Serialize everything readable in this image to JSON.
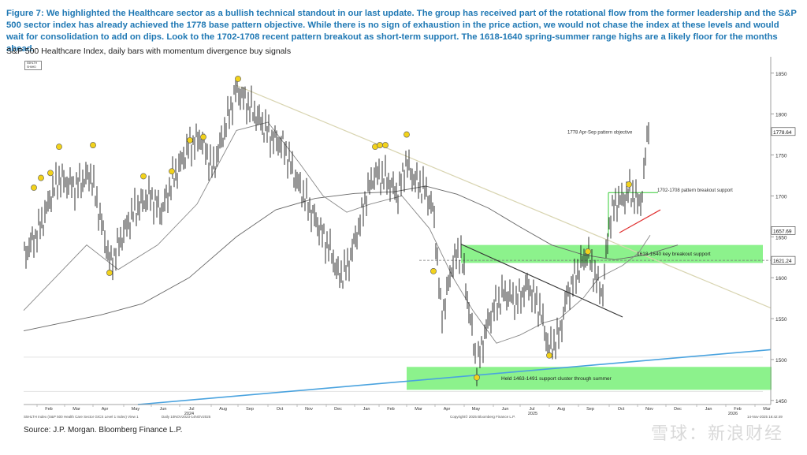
{
  "caption": "Figure 7: We highlighted the Healthcare sector as a bullish technical standout in our last update. The group has received part of the rotational flow from the former leadership and the S&P 500 sector index has already achieved the 1778 base pattern objective. While there is no sign of exhaustion in the price action, we would not chase the index at these levels and would wait for consolidation to add on dips. Look to the 1702-1708 recent pattern breakout as short-term support. The 1618-1640 spring-summer range highs are a likely floor for the months ahead.",
  "subtitle": "S&P 500 Healthcare Index, daily bars with momentum divergence buy signals",
  "source": "Source: J.P. Morgan. Bloomberg Finance L.P.",
  "watermark": "雪球：新浪财经",
  "legend_box": "S5HLTH SH6HD",
  "footer": {
    "left_small": "S5HLTH Index (S&P 500 Health Care Sector GICS Level 1 Index) View 1",
    "date_small": "Daily 10NOV2023-14NOV2025",
    "copyright": "Copyright© 2025 Bloomberg Finance L.P.",
    "timestamp": "14-Nov-2025 16:42:49"
  },
  "colors": {
    "caption": "#1f78b4",
    "green_zone": "#66ee66",
    "trend_blue": "#4aa3df",
    "trend_tan": "#d8d4b0",
    "signal_yellow": "#f2d21b",
    "red_line": "#e03030"
  },
  "chart_data": {
    "type": "bar",
    "title": "S&P 500 Healthcare Index, daily bars with momentum divergence buy signals",
    "ylim": [
      1445,
      1870
    ],
    "y_ticks": [
      1450,
      1500,
      1550,
      1600,
      1650,
      1700,
      1750,
      1800,
      1850
    ],
    "y_tick_labels": [
      "1450",
      "1500",
      "1550",
      "1600",
      "1650",
      "1700",
      "1750",
      "1800",
      "1850"
    ],
    "x_tick_labels": [
      "Feb",
      "Mar",
      "Apr",
      "May",
      "Jun",
      "Jul",
      "Aug",
      "Sep",
      "Oct",
      "Nov",
      "Dec",
      "Jan",
      "Feb",
      "Mar",
      "Apr",
      "May",
      "Jun",
      "Jul",
      "Aug",
      "Sep",
      "Oct",
      "Nov",
      "Dec",
      "Jan",
      "Feb",
      "Mar"
    ],
    "x_year_labels": [
      "2024",
      "2025",
      "2026"
    ],
    "price_labels": [
      "1778.64",
      "1657.69",
      "1621.24"
    ],
    "price_label_values": [
      1778.64,
      1657.69,
      1621.24
    ],
    "zones": [
      {
        "label": "1618-1640 key breakout support",
        "low": 1618,
        "high": 1640
      },
      {
        "label": "Held 1463-1491 support cluster through summer",
        "low": 1463,
        "high": 1491
      }
    ],
    "annotations": [
      "1778 Apr-Sep pattern objective",
      "1702-1708 pattern breakout support"
    ],
    "signal_count": 22
  }
}
